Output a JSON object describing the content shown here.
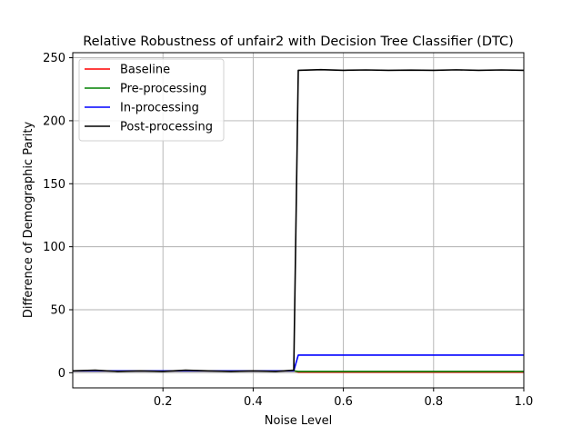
{
  "chart_data": {
    "type": "line",
    "title": "Relative Robustness of unfair2 with Decision Tree Classifier (DTC)",
    "xlabel": "Noise Level",
    "ylabel": "Difference of Demographic Parity",
    "xlim": [
      0.0,
      1.0
    ],
    "ylim": [
      -12,
      254
    ],
    "xticks": [
      0.2,
      0.4,
      0.6,
      0.8,
      1.0
    ],
    "xtick_labels": [
      "0.2",
      "0.4",
      "0.6",
      "0.8",
      "1.0"
    ],
    "yticks": [
      0,
      50,
      100,
      150,
      200,
      250
    ],
    "ytick_labels": [
      "0",
      "50",
      "100",
      "150",
      "200",
      "250"
    ],
    "grid": true,
    "legend_position": "top-left",
    "series": [
      {
        "name": "Baseline",
        "color": "#ff0000",
        "x": [
          0.0,
          0.1,
          0.2,
          0.3,
          0.4,
          0.49,
          0.5,
          0.6,
          0.7,
          0.8,
          0.9,
          1.0
        ],
        "y": [
          1.5,
          1.5,
          1.5,
          1.5,
          1.5,
          1.5,
          0.5,
          0.5,
          0.5,
          0.5,
          0.5,
          0.5
        ]
      },
      {
        "name": "Pre-processing",
        "color": "#008000",
        "x": [
          0.0,
          0.1,
          0.2,
          0.3,
          0.4,
          0.49,
          0.5,
          0.6,
          0.7,
          0.8,
          0.9,
          1.0
        ],
        "y": [
          1.5,
          1.5,
          1.5,
          1.5,
          1.5,
          1.5,
          1.0,
          1.0,
          1.0,
          1.0,
          1.0,
          1.0
        ]
      },
      {
        "name": "In-processing",
        "color": "#0000ff",
        "x": [
          0.0,
          0.1,
          0.2,
          0.3,
          0.4,
          0.49,
          0.5,
          0.6,
          0.7,
          0.8,
          0.9,
          1.0
        ],
        "y": [
          1.5,
          1.5,
          1.5,
          1.5,
          1.5,
          1.5,
          14.0,
          14.0,
          14.0,
          14.0,
          14.0,
          14.0
        ]
      },
      {
        "name": "Post-processing",
        "color": "#000000",
        "x": [
          0.0,
          0.05,
          0.1,
          0.15,
          0.2,
          0.25,
          0.3,
          0.35,
          0.4,
          0.45,
          0.49,
          0.5,
          0.55,
          0.6,
          0.65,
          0.7,
          0.75,
          0.8,
          0.85,
          0.9,
          0.95,
          1.0
        ],
        "y": [
          1.5,
          2.0,
          1.0,
          1.5,
          1.0,
          2.0,
          1.5,
          1.0,
          1.5,
          1.0,
          2.0,
          240,
          240.5,
          240,
          240.3,
          240,
          240.2,
          240,
          240.4,
          240,
          240.3,
          240
        ]
      }
    ]
  }
}
